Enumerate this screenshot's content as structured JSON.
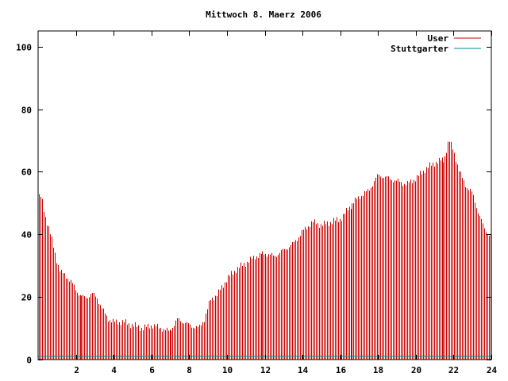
{
  "chart_data": {
    "type": "bar",
    "title": "Mittwoch 8. Maerz 2006",
    "xlabel": "",
    "ylabel": "",
    "xlim": [
      0,
      24
    ],
    "ylim": [
      0,
      105
    ],
    "x_ticks": [
      2,
      4,
      6,
      8,
      10,
      12,
      14,
      16,
      18,
      20,
      22,
      24
    ],
    "y_ticks": [
      0,
      20,
      40,
      60,
      80,
      100
    ],
    "grid": false,
    "legend_position": "top-right",
    "colors": {
      "User": "#cc0000",
      "Stuttgarter": "#008b8b",
      "axis": "#000000"
    },
    "series": [
      {
        "name": "User",
        "keypoints": [
          [
            0.0,
            52
          ],
          [
            0.15,
            52
          ],
          [
            0.35,
            46
          ],
          [
            0.55,
            42
          ],
          [
            0.75,
            37
          ],
          [
            0.95,
            32
          ],
          [
            1.15,
            28
          ],
          [
            1.4,
            27
          ],
          [
            1.7,
            25
          ],
          [
            2.0,
            22
          ],
          [
            2.3,
            20
          ],
          [
            2.6,
            20
          ],
          [
            2.85,
            21
          ],
          [
            3.1,
            20
          ],
          [
            3.4,
            16
          ],
          [
            3.7,
            13
          ],
          [
            4.0,
            12
          ],
          [
            4.5,
            12
          ],
          [
            5.0,
            11
          ],
          [
            5.5,
            10
          ],
          [
            6.0,
            11
          ],
          [
            6.5,
            10
          ],
          [
            6.9,
            9
          ],
          [
            7.2,
            11
          ],
          [
            7.4,
            13
          ],
          [
            7.7,
            12
          ],
          [
            8.0,
            11
          ],
          [
            8.5,
            10
          ],
          [
            8.8,
            13
          ],
          [
            9.1,
            19
          ],
          [
            9.5,
            21
          ],
          [
            10.0,
            26
          ],
          [
            10.5,
            29
          ],
          [
            11.0,
            31
          ],
          [
            11.5,
            33
          ],
          [
            12.0,
            34
          ],
          [
            12.5,
            33
          ],
          [
            13.0,
            35
          ],
          [
            13.5,
            37
          ],
          [
            14.0,
            41
          ],
          [
            14.5,
            44
          ],
          [
            15.0,
            43
          ],
          [
            15.5,
            44
          ],
          [
            16.0,
            45
          ],
          [
            16.5,
            49
          ],
          [
            17.0,
            52
          ],
          [
            17.5,
            54
          ],
          [
            18.0,
            59
          ],
          [
            18.5,
            58
          ],
          [
            19.0,
            57
          ],
          [
            19.5,
            56
          ],
          [
            20.0,
            58
          ],
          [
            20.5,
            61
          ],
          [
            21.0,
            63
          ],
          [
            21.5,
            64
          ],
          [
            21.75,
            70
          ],
          [
            22.0,
            67
          ],
          [
            22.3,
            60
          ],
          [
            22.7,
            55
          ],
          [
            23.0,
            53
          ],
          [
            23.3,
            47
          ],
          [
            23.6,
            42
          ],
          [
            24.0,
            39
          ]
        ]
      },
      {
        "name": "Stuttgarter",
        "values": [
          [
            0,
            1
          ],
          [
            24,
            1
          ]
        ]
      }
    ]
  }
}
